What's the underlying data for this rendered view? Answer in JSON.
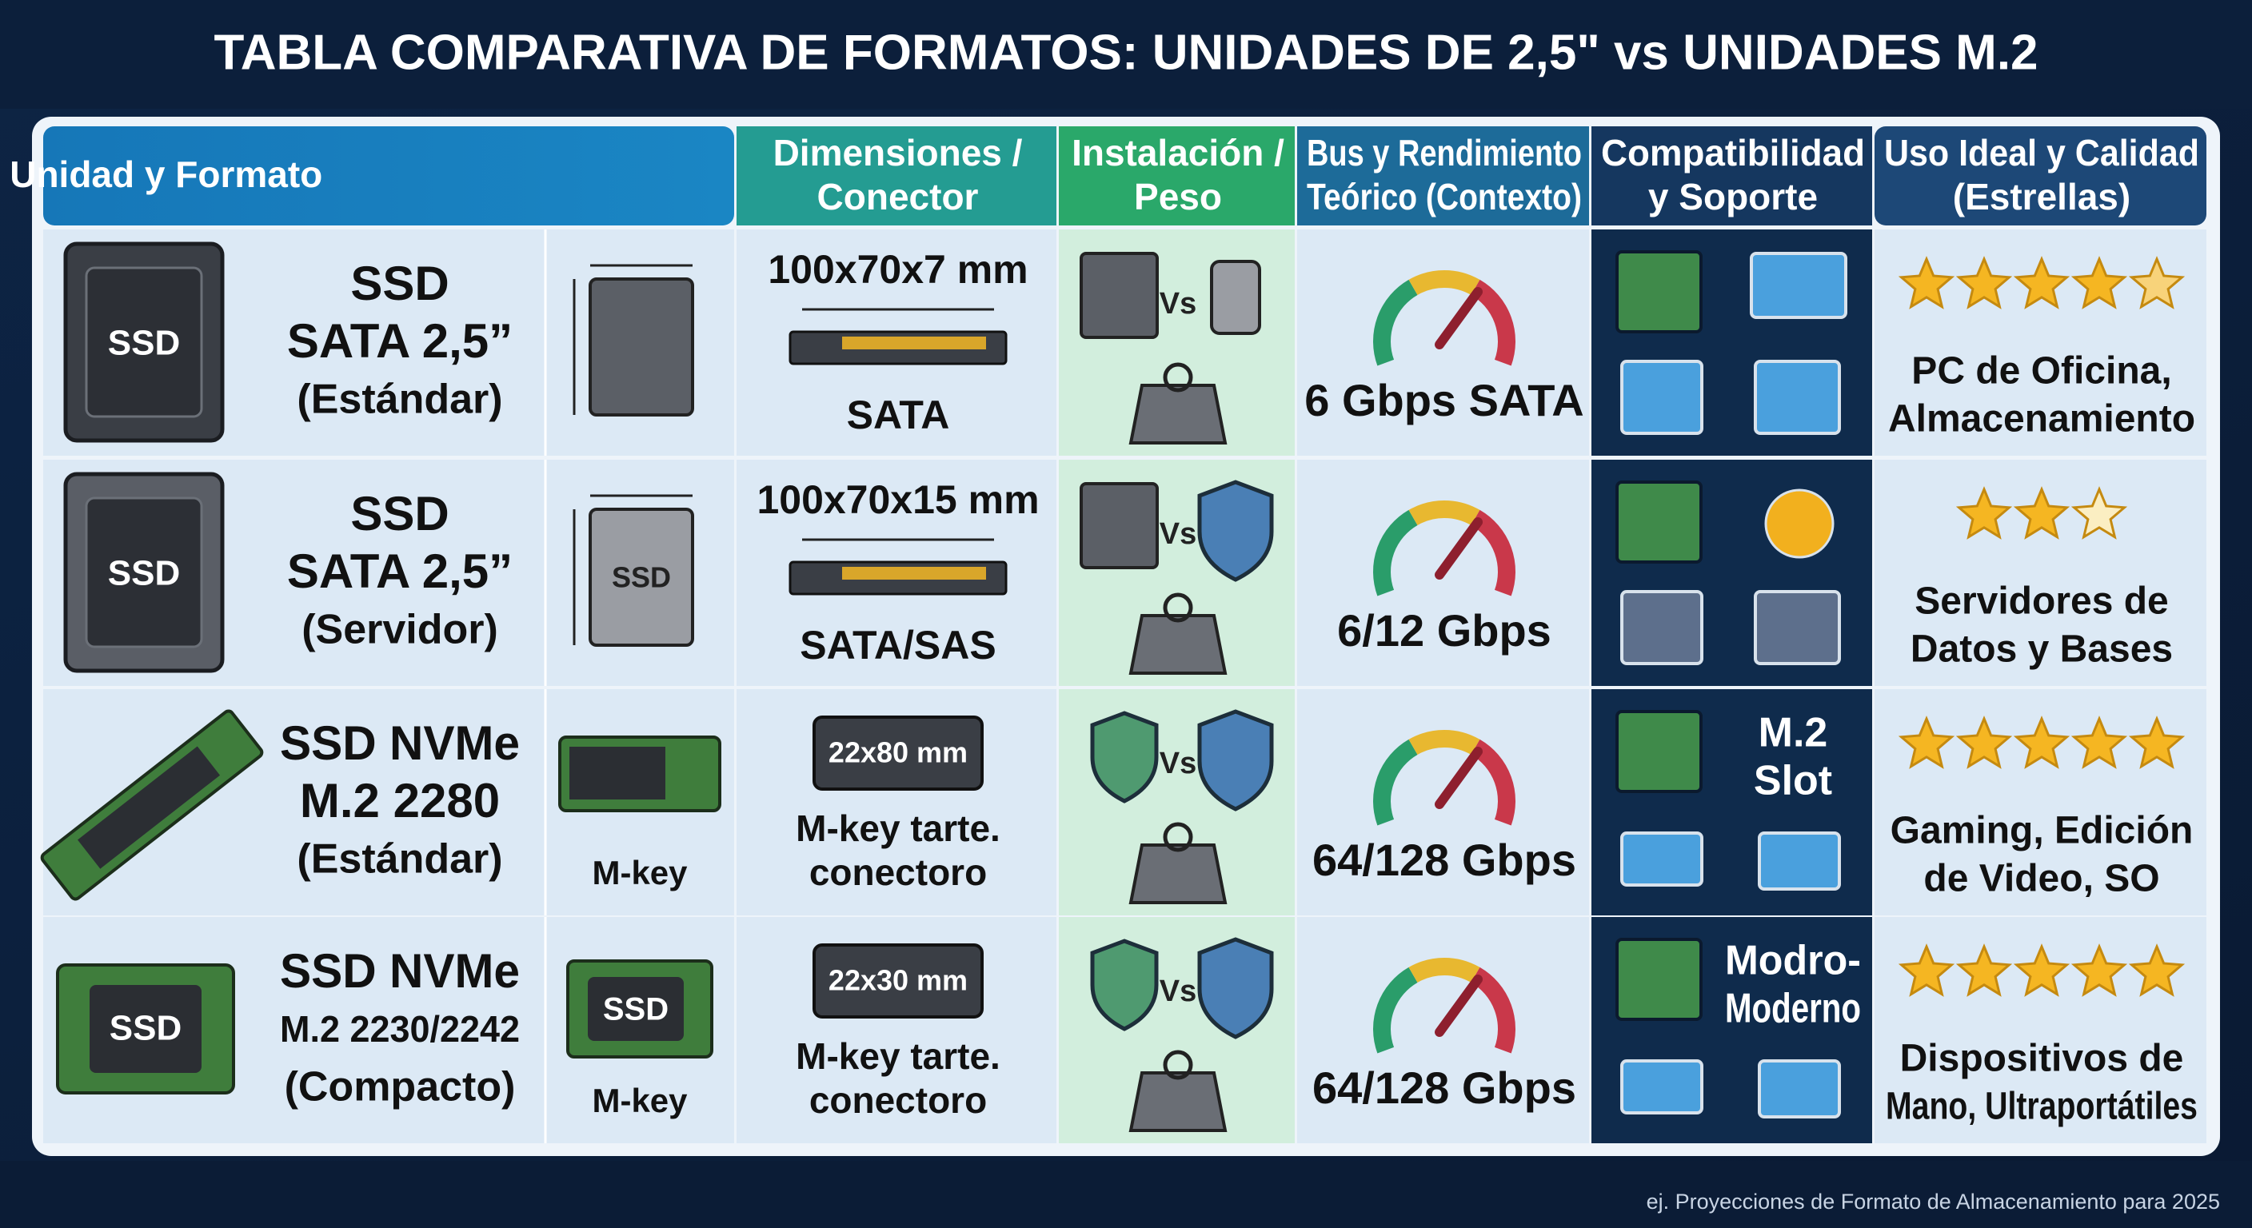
{
  "header": {
    "title": "TABLA COMPARATIVA DE FORMATOS: UNIDADES DE 2,5\" vs UNIDADES M.2"
  },
  "table": {
    "headers": [
      [
        "Tipo de Unidad y Formato"
      ],
      [
        "Dimensiones /",
        "Conector"
      ],
      [
        "Instalación /",
        "Peso"
      ],
      [
        "Bus y Rendimiento",
        "Teórico (Contexto)"
      ],
      [
        "Compatibilidad",
        "y Soporte"
      ],
      [
        "Uso Ideal y Calidad",
        "(Estrellas)"
      ]
    ],
    "rows": [
      {
        "kind": "sata",
        "icon_label": "SSD",
        "name": [
          "SSD",
          "SATA 2,5”",
          "(Estándar)"
        ],
        "dimensions": "100x70x7 mm",
        "connector": [
          "SATA"
        ],
        "vs": "Vs",
        "bus": "6 Gbps SATA",
        "rating": 4.5,
        "stars": 5,
        "use": [
          "PC de Oficina,",
          "Almacenamiento"
        ]
      },
      {
        "kind": "server",
        "icon_label": "SSD",
        "name": [
          "SSD",
          "SATA 2,5”",
          "(Servidor)"
        ],
        "diagram_label": "SSD",
        "dimensions": "100x70x15 mm",
        "connector": [
          "SATA/SAS"
        ],
        "vs": "Vs",
        "bus": "6/12 Gbps",
        "rating": 2,
        "stars": 3,
        "use": [
          "Servidores de",
          "Datos y Bases"
        ]
      },
      {
        "kind": "m2",
        "name": [
          "SSD NVMe",
          "M.2 2280",
          "(Estándar)"
        ],
        "side_label": "M-key",
        "chip": "22x80 mm",
        "connector": [
          "M-key tarte.",
          "conectoro"
        ],
        "vs": "Vs",
        "bus": "64/128 Gbps",
        "compat": [
          "M.2",
          "Slot"
        ],
        "rating": 5,
        "stars": 5,
        "use": [
          "Gaming, Edición",
          "de Video, SO"
        ]
      },
      {
        "kind": "m2s",
        "icon_label": "SSD",
        "name": [
          "SSD NVMe",
          "M.2 2230/2242",
          "(Compacto)"
        ],
        "diagram_label": "SSD",
        "side_label": "M-key",
        "chip": "22x30 mm",
        "connector": [
          "M-key tarte.",
          "conectoro"
        ],
        "vs": "Vs",
        "bus": "64/128 Gbps",
        "compat": [
          "Modro-",
          "Moderno"
        ],
        "rating": 5,
        "stars": 5,
        "use": [
          "Dispositivos de",
          "Mano, Ultraportátiles"
        ]
      }
    ]
  },
  "footer": {
    "note": "ej. Proyecciones de Formato de Almacenamiento para 2025"
  }
}
